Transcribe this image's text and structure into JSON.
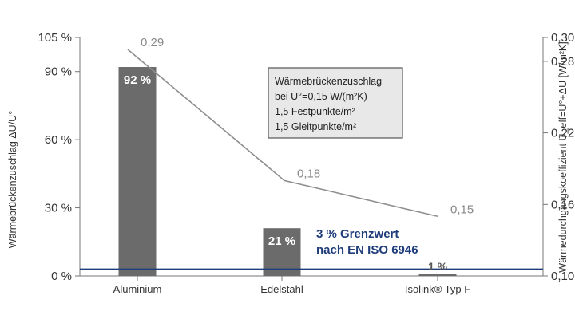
{
  "chart_data": {
    "type": "bar",
    "categories": [
      "Aluminium",
      "Edelstahl",
      "Isolink® Typ F"
    ],
    "bar_values": [
      92,
      21,
      1
    ],
    "bar_labels": [
      "92 %",
      "21 %",
      "1 %"
    ],
    "line_values": [
      0.29,
      0.18,
      0.15
    ],
    "line_labels": [
      "0,29",
      "0,18",
      "0,15"
    ],
    "y_left_label": "Wärmebrückenzuschlag ΔU/U°",
    "y_left_ticks": [
      {
        "value": 0,
        "label": "0 %"
      },
      {
        "value": 30,
        "label": "30 %"
      },
      {
        "value": 60,
        "label": "60 %"
      },
      {
        "value": 90,
        "label": "90 %"
      },
      {
        "value": 105,
        "label": "105 %"
      }
    ],
    "y_left_lim": [
      0,
      105
    ],
    "y_right_label": "Wärmedurchgangskoeffizient U_eff=U°+ΔU [W/m²K]",
    "y_right_ticks": [
      {
        "value": 0.1,
        "label": "0,10"
      },
      {
        "value": 0.16,
        "label": "0,16"
      },
      {
        "value": 0.22,
        "label": "0,22"
      },
      {
        "value": 0.28,
        "label": "0,28"
      },
      {
        "value": 0.3,
        "label": "0,30"
      }
    ],
    "y_right_lim": [
      0.1,
      0.3
    ],
    "reference_line": {
      "value": 3,
      "label_lines": [
        "3 % Grenzwert",
        "nach EN ISO 6946"
      ]
    },
    "annotation_box": [
      "Wärmebrückenzuschlag",
      "bei U°=0,15 W/(m²K)",
      "1,5 Festpunkte/m²",
      "1,5 Gleitpunkte/m²"
    ],
    "colors": {
      "bar": "#6b6b6b",
      "line": "#8f8f8f",
      "reference": "#1f3d7a",
      "axis": "#777777",
      "box_fill": "#e8e8e8",
      "box_border": "#555555"
    }
  }
}
